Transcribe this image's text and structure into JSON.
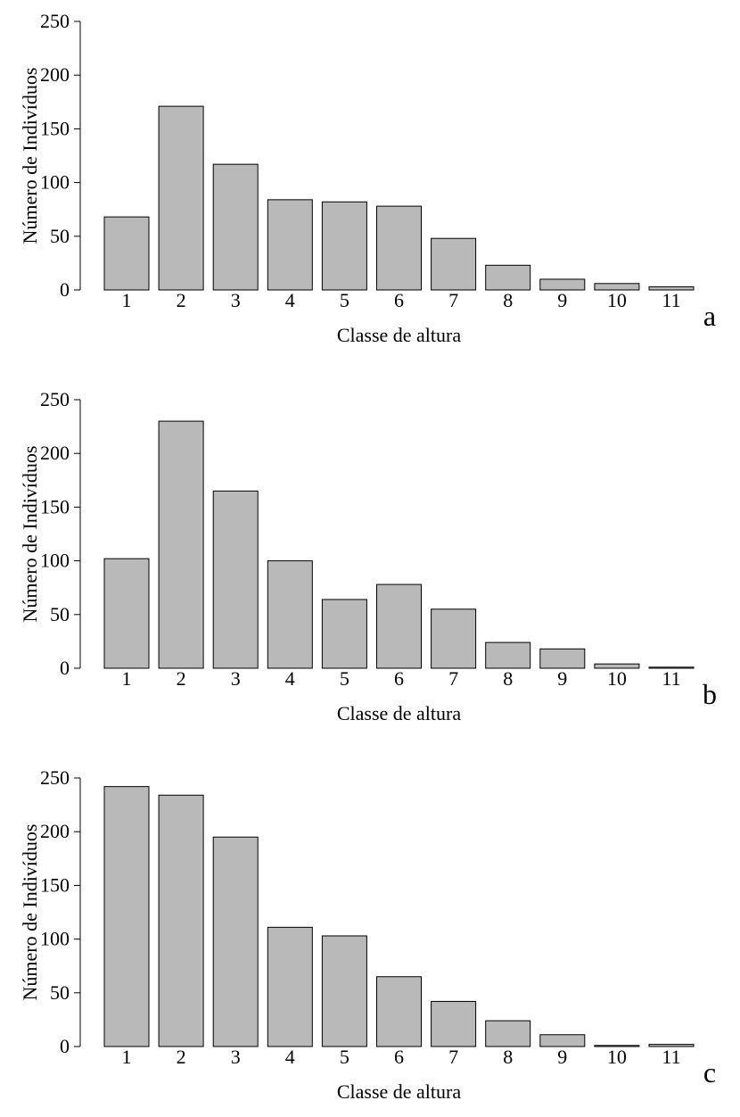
{
  "chart_data": [
    {
      "type": "bar",
      "panel_label": "a",
      "categories": [
        "1",
        "2",
        "3",
        "4",
        "5",
        "6",
        "7",
        "8",
        "9",
        "10",
        "11"
      ],
      "values": [
        68,
        171,
        117,
        84,
        82,
        78,
        48,
        23,
        10,
        6,
        3
      ],
      "xlabel": "Classe de altura",
      "ylabel": "Número de Indivíduos",
      "ylim": [
        0,
        250
      ],
      "yticks": [
        0,
        50,
        100,
        150,
        200,
        250
      ],
      "bar_color": "#b9b9b9",
      "grid": false
    },
    {
      "type": "bar",
      "panel_label": "b",
      "categories": [
        "1",
        "2",
        "3",
        "4",
        "5",
        "6",
        "7",
        "8",
        "9",
        "10",
        "11"
      ],
      "values": [
        102,
        230,
        165,
        100,
        64,
        78,
        55,
        24,
        18,
        4,
        1
      ],
      "xlabel": "Classe de altura",
      "ylabel": "Número de Indivíduos",
      "ylim": [
        0,
        250
      ],
      "yticks": [
        0,
        50,
        100,
        150,
        200,
        250
      ],
      "bar_color": "#b9b9b9",
      "grid": false
    },
    {
      "type": "bar",
      "panel_label": "c",
      "categories": [
        "1",
        "2",
        "3",
        "4",
        "5",
        "6",
        "7",
        "8",
        "9",
        "10",
        "11"
      ],
      "values": [
        242,
        234,
        195,
        111,
        103,
        65,
        42,
        24,
        11,
        1,
        2
      ],
      "xlabel": "Classe de altura",
      "ylabel": "Número de Indivíduos",
      "ylim": [
        0,
        250
      ],
      "yticks": [
        0,
        50,
        100,
        150,
        200,
        250
      ],
      "bar_color": "#b9b9b9",
      "grid": false
    }
  ]
}
